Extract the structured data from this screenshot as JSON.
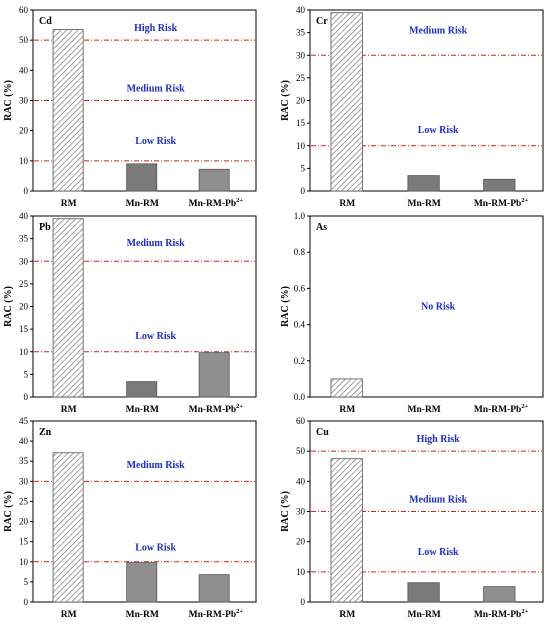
{
  "figure": {
    "ylabel": "RAC (%)",
    "categories": [
      "RM",
      "Mn-RM",
      "Mn-RM-Pb"
    ],
    "category_superscripts": [
      "",
      "",
      "2+"
    ],
    "colors": {
      "risk_line": "#cc2222",
      "risk_text": "#1f2fbf",
      "bar_hatched": "#6e6e6e",
      "bar_solid": "#7a7a7a",
      "bar_light": "#8f8f8f"
    }
  },
  "chart_data": [
    {
      "panel": "Cd",
      "type": "bar",
      "ylabel": "RAC (%)",
      "ylim": [
        0,
        60
      ],
      "yticks": [
        "0",
        "10",
        "20",
        "30",
        "40",
        "50",
        "60"
      ],
      "categories": [
        "RM",
        "Mn-RM",
        "Mn-RM-Pb2+"
      ],
      "values": [
        53.5,
        9.0,
        7.2
      ],
      "fills": [
        "hatched",
        "solid",
        "light"
      ],
      "thresholds": [
        10,
        30,
        50
      ],
      "zones": [
        {
          "label": "High Risk",
          "y": 54
        },
        {
          "label": "Medium Risk",
          "y": 34
        },
        {
          "label": "Low Risk",
          "y": 16.5
        }
      ]
    },
    {
      "panel": "Cr",
      "type": "bar",
      "ylabel": "RAC (%)",
      "ylim": [
        0,
        40
      ],
      "yticks": [
        "0",
        "5",
        "10",
        "15",
        "20",
        "25",
        "30",
        "35",
        "40"
      ],
      "categories": [
        "RM",
        "Mn-RM",
        "Mn-RM-Pb2+"
      ],
      "values": [
        39.4,
        3.4,
        2.6
      ],
      "fills": [
        "hatched",
        "solid",
        "solid"
      ],
      "thresholds": [
        10,
        30
      ],
      "zones": [
        {
          "label": "Medium Risk",
          "y": 35.5
        },
        {
          "label": "Low Risk",
          "y": 13.5
        }
      ]
    },
    {
      "panel": "Pb",
      "type": "bar",
      "ylabel": "RAC (%)",
      "ylim": [
        0,
        40
      ],
      "yticks": [
        "0",
        "5",
        "10",
        "15",
        "20",
        "25",
        "30",
        "35",
        "40"
      ],
      "categories": [
        "RM",
        "Mn-RM",
        "Mn-RM-Pb2+"
      ],
      "values": [
        39.4,
        3.4,
        9.8
      ],
      "fills": [
        "hatched",
        "solid",
        "light"
      ],
      "thresholds": [
        10,
        30
      ],
      "zones": [
        {
          "label": "Medium Risk",
          "y": 34
        },
        {
          "label": "Low Risk",
          "y": 13.5
        }
      ]
    },
    {
      "panel": "As",
      "type": "bar",
      "ylabel": "RAC (%)",
      "ylim": [
        0,
        1.0
      ],
      "yticks": [
        "0.0",
        "0.2",
        "0.4",
        "0.6",
        "0.8",
        "1.0"
      ],
      "categories": [
        "RM",
        "Mn-RM",
        "Mn-RM-Pb2+"
      ],
      "values": [
        0.1,
        0,
        0
      ],
      "fills": [
        "hatched",
        "solid",
        "solid"
      ],
      "thresholds": [],
      "zones": [
        {
          "label": "No Risk",
          "y": 0.5
        }
      ]
    },
    {
      "panel": "Zn",
      "type": "bar",
      "ylabel": "RAC (%)",
      "ylim": [
        0,
        45
      ],
      "yticks": [
        "0",
        "5",
        "10",
        "15",
        "20",
        "25",
        "30",
        "35",
        "40",
        "45"
      ],
      "categories": [
        "RM",
        "Mn-RM",
        "Mn-RM-Pb2+"
      ],
      "values": [
        37.1,
        9.8,
        6.8
      ],
      "fills": [
        "hatched",
        "light",
        "light"
      ],
      "thresholds": [
        10,
        30
      ],
      "zones": [
        {
          "label": "Medium Risk",
          "y": 34
        },
        {
          "label": "Low Risk",
          "y": 13.5
        }
      ]
    },
    {
      "panel": "Cu",
      "type": "bar",
      "ylabel": "RAC (%)",
      "ylim": [
        0,
        60
      ],
      "yticks": [
        "0",
        "10",
        "20",
        "30",
        "40",
        "50",
        "60"
      ],
      "categories": [
        "RM",
        "Mn-RM",
        "Mn-RM-Pb2+"
      ],
      "values": [
        47.5,
        6.4,
        5.1
      ],
      "fills": [
        "hatched",
        "solid",
        "light"
      ],
      "thresholds": [
        10,
        30,
        50
      ],
      "zones": [
        {
          "label": "High Risk",
          "y": 54
        },
        {
          "label": "Medium Risk",
          "y": 34
        },
        {
          "label": "Low Risk",
          "y": 16.5
        }
      ]
    }
  ]
}
